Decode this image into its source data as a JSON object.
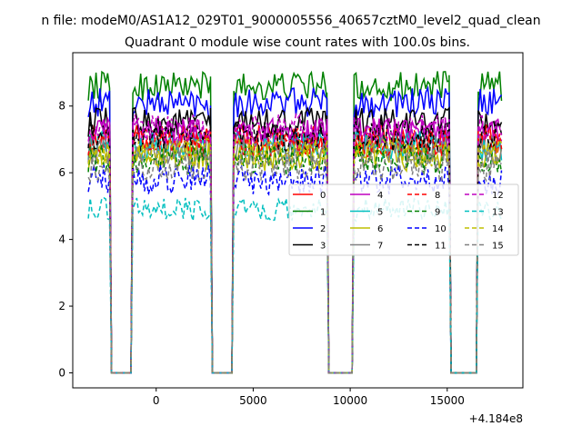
{
  "chart_data": {
    "type": "line",
    "suptitle": "n file: modeM0/AS1A12_029T01_9000005556_40657cztM0_level2_quad_clean",
    "title": "Quadrant 0 module wise count rates with 100.0s bins.",
    "xlabel": "",
    "ylabel": "",
    "offset_text": "+4.184e8",
    "xlim": [
      -4300,
      18900
    ],
    "ylim": [
      -0.45,
      9.6
    ],
    "x_ticks": [
      0,
      5000,
      10000,
      15000
    ],
    "x_tick_labels": [
      "0",
      "5000",
      "10000",
      "15000"
    ],
    "y_ticks": [
      0,
      2,
      4,
      6,
      8
    ],
    "y_tick_labels": [
      "0",
      "2",
      "4",
      "6",
      "8"
    ],
    "grid": false,
    "legend_position": "center-right",
    "legend_columns": 4,
    "x_start": -3500,
    "x_step": 100,
    "segments": [
      {
        "on": [
          -3500,
          -2400
        ],
        "off": [
          -2300,
          -1300
        ],
        "back": [
          -1200,
          2800
        ]
      },
      {
        "on": [
          2800,
          2800
        ],
        "off": [
          2900,
          3900
        ],
        "back": [
          4000,
          8800
        ]
      },
      {
        "on": [
          8800,
          8800
        ],
        "off": [
          8900,
          10100
        ],
        "back": [
          10200,
          15100
        ]
      },
      {
        "on": [
          15100,
          15100
        ],
        "off": [
          15200,
          16500
        ],
        "back": [
          16600,
          17800
        ]
      }
    ],
    "series": [
      {
        "name": "0",
        "color": "#ff0000",
        "style": "solid",
        "level": 7.0
      },
      {
        "name": "1",
        "color": "#008000",
        "style": "solid",
        "level": 8.6
      },
      {
        "name": "2",
        "color": "#0000ff",
        "style": "solid",
        "level": 8.1
      },
      {
        "name": "3",
        "color": "#000000",
        "style": "solid",
        "level": 7.5
      },
      {
        "name": "4",
        "color": "#bf00bf",
        "style": "solid",
        "level": 7.2
      },
      {
        "name": "5",
        "color": "#00bfbf",
        "style": "solid",
        "level": 6.8
      },
      {
        "name": "6",
        "color": "#bfbf00",
        "style": "solid",
        "level": 6.5
      },
      {
        "name": "7",
        "color": "#808080",
        "style": "solid",
        "level": 6.7
      },
      {
        "name": "8",
        "color": "#ff0000",
        "style": "dashed",
        "level": 6.9
      },
      {
        "name": "9",
        "color": "#008000",
        "style": "dashed",
        "level": 6.4
      },
      {
        "name": "10",
        "color": "#0000ff",
        "style": "dashed",
        "level": 5.8
      },
      {
        "name": "11",
        "color": "#000000",
        "style": "dashed",
        "level": 7.1
      },
      {
        "name": "12",
        "color": "#bf00bf",
        "style": "dashed",
        "level": 7.3
      },
      {
        "name": "13",
        "color": "#00bfbf",
        "style": "dashed",
        "level": 4.9
      },
      {
        "name": "14",
        "color": "#bfbf00",
        "style": "dashed",
        "level": 6.6
      },
      {
        "name": "15",
        "color": "#808080",
        "style": "dashed",
        "level": 6.2
      }
    ]
  }
}
